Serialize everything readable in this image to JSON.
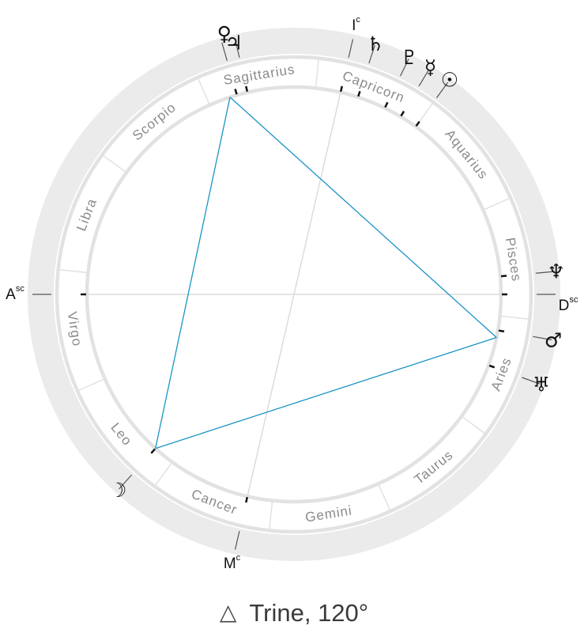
{
  "signs": [
    {
      "name": "Aries",
      "start": 0
    },
    {
      "name": "Taurus",
      "start": 30
    },
    {
      "name": "Gemini",
      "start": 60
    },
    {
      "name": "Cancer",
      "start": 90
    },
    {
      "name": "Leo",
      "start": 120
    },
    {
      "name": "Virgo",
      "start": 150
    },
    {
      "name": "Libra",
      "start": 180
    },
    {
      "name": "Scorpio",
      "start": 210
    },
    {
      "name": "Sagittarius",
      "start": 240
    },
    {
      "name": "Capricorn",
      "start": 270
    },
    {
      "name": "Aquarius",
      "start": 300
    },
    {
      "name": "Pisces",
      "start": 330
    }
  ],
  "planets": [
    {
      "id": "moon",
      "glyph": "☽",
      "lon": 126
    },
    {
      "id": "uranus",
      "glyph": "♅",
      "lon": 14
    },
    {
      "id": "mars",
      "glyph": "♂",
      "lon": 4
    },
    {
      "id": "neptune",
      "glyph": "♆",
      "lon": 349
    },
    {
      "id": "sun",
      "glyph": "☉",
      "lon": 300
    },
    {
      "id": "mercury",
      "glyph": "☿",
      "lon": 295
    },
    {
      "id": "pluto",
      "glyph": "♇",
      "lon": 290
    },
    {
      "id": "saturn",
      "glyph": "♄",
      "lon": 282
    },
    {
      "id": "venus",
      "glyph": "♀",
      "lon": 251
    },
    {
      "id": "jupiter",
      "glyph": "♃",
      "lon": 248
    }
  ],
  "angles": [
    {
      "id": "asc",
      "main": "A",
      "sup": "sc",
      "lon": 174
    },
    {
      "id": "dsc",
      "main": "D",
      "sup": "sc",
      "lon": 354
    },
    {
      "id": "mc",
      "main": "M",
      "sup": "c",
      "lon": 97
    },
    {
      "id": "ic",
      "main": "I",
      "sup": "c",
      "lon": 277
    }
  ],
  "aspect": {
    "symbol": "△",
    "label": "Trine, 120°",
    "line_color": "#1a95c4",
    "points": [
      126,
      6,
      246
    ]
  },
  "colors": {
    "outer_ring": "#ebebeb",
    "ring_line": "#e2e2e2",
    "axis_line": "#dcdcdc",
    "tick": "#111111"
  }
}
